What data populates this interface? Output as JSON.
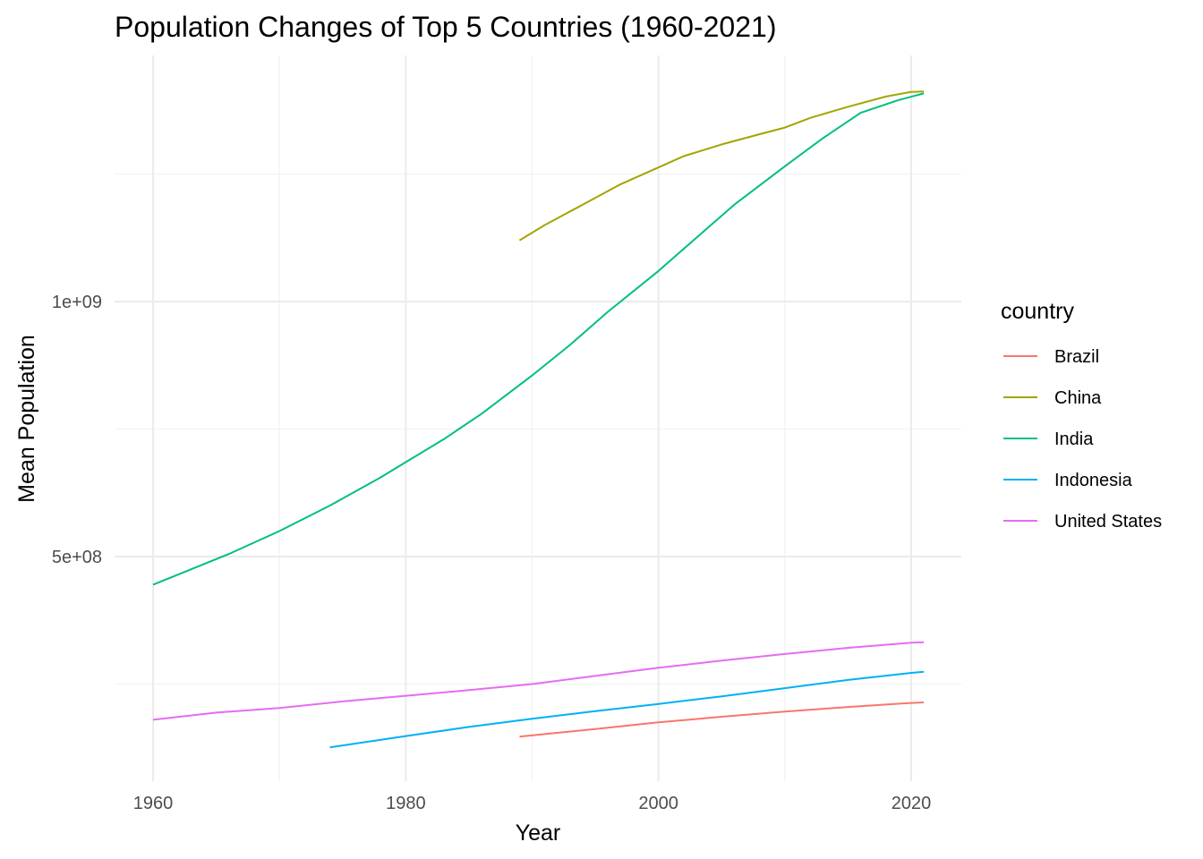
{
  "chart_data": {
    "type": "line",
    "title": "Population Changes of Top 5 Countries (1960-2021)",
    "xlabel": "Year",
    "ylabel": "Mean Population",
    "xlim": [
      1960,
      2021
    ],
    "ylim": [
      110000000.0,
      1430000000.0
    ],
    "x_ticks": [
      1960,
      1980,
      2000,
      2020
    ],
    "x_minor_ticks": [
      1970,
      1990,
      2010
    ],
    "y_ticks": [
      500000000,
      1000000000
    ],
    "y_tick_labels": [
      "5e+08",
      "1e+09"
    ],
    "y_minor_ticks": [
      250000000,
      750000000,
      1250000000
    ],
    "grid": true,
    "legend": {
      "title": "country",
      "position": "right"
    },
    "series": [
      {
        "name": "Brazil",
        "color": "#F8766D",
        "points": [
          [
            1989,
            147000000
          ],
          [
            1995,
            162000000
          ],
          [
            2000,
            175000000
          ],
          [
            2005,
            186000000
          ],
          [
            2010,
            196000000
          ],
          [
            2015,
            205000000
          ],
          [
            2020,
            213000000
          ],
          [
            2021,
            214000000
          ]
        ]
      },
      {
        "name": "China",
        "color": "#A3A500",
        "points": [
          [
            1989,
            1120000000
          ],
          [
            1991,
            1150000000
          ],
          [
            1994,
            1190000000
          ],
          [
            1997,
            1230000000
          ],
          [
            2000,
            1263000000
          ],
          [
            2002,
            1285000000
          ],
          [
            2005,
            1308000000
          ],
          [
            2008,
            1328000000
          ],
          [
            2010,
            1341000000
          ],
          [
            2012,
            1360000000
          ],
          [
            2015,
            1382000000
          ],
          [
            2018,
            1402000000
          ],
          [
            2020,
            1411000000
          ],
          [
            2021,
            1412000000
          ]
        ]
      },
      {
        "name": "India",
        "color": "#00BF7D",
        "points": [
          [
            1960,
            445000000
          ],
          [
            1963,
            475000000
          ],
          [
            1966,
            505000000
          ],
          [
            1970,
            550000000
          ],
          [
            1974,
            600000000
          ],
          [
            1978,
            655000000
          ],
          [
            1980,
            685000000
          ],
          [
            1983,
            730000000
          ],
          [
            1986,
            780000000
          ],
          [
            1990,
            855000000
          ],
          [
            1993,
            915000000
          ],
          [
            1996,
            980000000
          ],
          [
            2000,
            1060000000
          ],
          [
            2003,
            1125000000
          ],
          [
            2006,
            1190000000
          ],
          [
            2010,
            1265000000
          ],
          [
            2013,
            1320000000
          ],
          [
            2016,
            1370000000
          ],
          [
            2019,
            1395000000
          ],
          [
            2021,
            1408000000
          ]
        ]
      },
      {
        "name": "Indonesia",
        "color": "#00B0F6",
        "points": [
          [
            1974,
            126000000
          ],
          [
            1980,
            148000000
          ],
          [
            1985,
            166000000
          ],
          [
            1990,
            182000000
          ],
          [
            1995,
            197000000
          ],
          [
            2000,
            211000000
          ],
          [
            2005,
            226000000
          ],
          [
            2010,
            242000000
          ],
          [
            2015,
            258000000
          ],
          [
            2020,
            272000000
          ],
          [
            2021,
            274000000
          ]
        ]
      },
      {
        "name": "United States",
        "color": "#E76BF3",
        "points": [
          [
            1960,
            180000000
          ],
          [
            1965,
            194000000
          ],
          [
            1970,
            203000000
          ],
          [
            1975,
            216000000
          ],
          [
            1980,
            227000000
          ],
          [
            1985,
            238000000
          ],
          [
            1990,
            250000000
          ],
          [
            1995,
            266000000
          ],
          [
            2000,
            282000000
          ],
          [
            2005,
            296000000
          ],
          [
            2010,
            309000000
          ],
          [
            2015,
            321000000
          ],
          [
            2020,
            331000000
          ],
          [
            2021,
            332000000
          ]
        ]
      }
    ]
  }
}
